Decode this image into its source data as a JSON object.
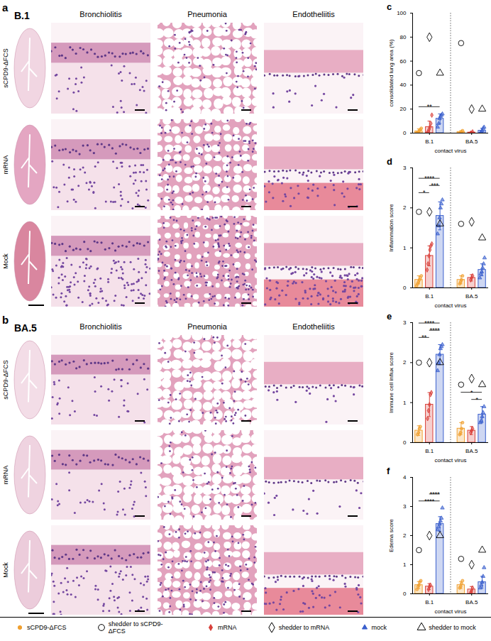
{
  "histology": {
    "panels": [
      {
        "letter": "a",
        "virus": "B.1",
        "columns": [
          "Bronchiolitis",
          "Pneumonia",
          "Endotheliitis"
        ],
        "rows": [
          "sCPD9-ΔFCS",
          "mRNA",
          "Mock"
        ]
      },
      {
        "letter": "b",
        "virus": "BA.5",
        "columns": [
          "Bronchiolitis",
          "Pneumonia",
          "Endotheliitis"
        ],
        "rows": [
          "sCPD9-ΔFCS",
          "mRNA",
          "Mock"
        ]
      }
    ]
  },
  "chart_data": [
    {
      "type": "bar",
      "panel": "c",
      "ylabel": "consolidated lung area (%)",
      "xlabel": "contact virus",
      "categories": [
        "B.1",
        "BA.5"
      ],
      "ylim": [
        0,
        100
      ],
      "yticks": [
        0,
        20,
        40,
        60,
        80,
        100
      ],
      "series": [
        {
          "name": "sCPD9-ΔFCS",
          "shedder_name": "shedder to sCPD9-ΔFCS",
          "color": "#f0a030",
          "marker": "circle",
          "values": [
            1.5,
            1
          ],
          "errors": [
            2,
            1
          ],
          "points": [
            [
              0,
              0,
              1,
              2,
              3,
              4
            ],
            [
              0,
              0,
              1,
              2
            ]
          ],
          "shedder": [
            50,
            75
          ]
        },
        {
          "name": "mRNA",
          "shedder_name": "shedder to mRNA",
          "color": "#d9403a",
          "marker": "diamond",
          "values": [
            5,
            0.5
          ],
          "errors": [
            5,
            0.5
          ],
          "points": [
            [
              0,
              1,
              3,
              5,
              8,
              15
            ],
            [
              0,
              0,
              1
            ]
          ],
          "shedder": [
            80,
            20
          ]
        },
        {
          "name": "mock",
          "shedder_name": "shedder to mock",
          "color": "#3a5fcd",
          "marker": "triangle",
          "values": [
            12,
            2
          ],
          "errors": [
            4,
            2
          ],
          "points": [
            [
              5,
              8,
              12,
              14,
              15,
              16
            ],
            [
              0,
              1,
              2,
              4,
              5
            ]
          ],
          "shedder": [
            50,
            20
          ]
        }
      ],
      "significance": [
        {
          "category": "B.1",
          "from": "sCPD9-ΔFCS",
          "to": "mock",
          "label": "**"
        }
      ]
    },
    {
      "type": "bar",
      "panel": "d",
      "ylabel": "Inflammation score",
      "xlabel": "contact virus",
      "categories": [
        "B.1",
        "BA.5"
      ],
      "ylim": [
        0,
        3
      ],
      "yticks": [
        0,
        1,
        2,
        3
      ],
      "series": [
        {
          "name": "sCPD9-ΔFCS",
          "shedder_name": "shedder to sCPD9-ΔFCS",
          "color": "#f0a030",
          "marker": "circle",
          "values": [
            0.2,
            0.2
          ],
          "errors": [
            0.1,
            0.1
          ],
          "points": [
            [
              0.05,
              0.1,
              0.15,
              0.2,
              0.25,
              0.3
            ],
            [
              0.1,
              0.15,
              0.2,
              0.3
            ]
          ],
          "shedder": [
            1.9,
            1.6
          ]
        },
        {
          "name": "mRNA",
          "shedder_name": "shedder to mRNA",
          "color": "#d9403a",
          "marker": "diamond",
          "values": [
            0.8,
            0.25
          ],
          "errors": [
            0.25,
            0.08
          ],
          "points": [
            [
              0.45,
              0.6,
              0.8,
              0.95,
              1.05,
              1.1
            ],
            [
              0.2,
              0.25,
              0.3
            ]
          ],
          "shedder": [
            1.9,
            1.65
          ]
        },
        {
          "name": "mock",
          "shedder_name": "shedder to mock",
          "color": "#3a5fcd",
          "marker": "triangle",
          "values": [
            1.8,
            0.45
          ],
          "errors": [
            0.35,
            0.15
          ],
          "points": [
            [
              1.35,
              1.55,
              1.75,
              2.0,
              2.1,
              2.2
            ],
            [
              0.25,
              0.35,
              0.4,
              0.5,
              0.6,
              0.75
            ]
          ],
          "shedder": [
            1.6,
            1.25
          ]
        }
      ],
      "significance": [
        {
          "category": "B.1",
          "from": "sCPD9-ΔFCS",
          "to": "mRNA",
          "label": "*"
        },
        {
          "category": "B.1",
          "from": "mRNA",
          "to": "mock",
          "label": "***"
        },
        {
          "category": "B.1",
          "from": "sCPD9-ΔFCS",
          "to": "mock",
          "label": "****"
        }
      ]
    },
    {
      "type": "bar",
      "panel": "e",
      "ylabel": "Immune cell influx score",
      "xlabel": "contact virus",
      "categories": [
        "B.1",
        "BA.5"
      ],
      "ylim": [
        0,
        3
      ],
      "yticks": [
        0,
        1,
        2,
        3
      ],
      "series": [
        {
          "name": "sCPD9-ΔFCS",
          "shedder_name": "shedder to sCPD9-ΔFCS",
          "color": "#f0a030",
          "marker": "circle",
          "values": [
            0.3,
            0.35
          ],
          "errors": [
            0.12,
            0.15
          ],
          "points": [
            [
              0.2,
              0.25,
              0.35,
              0.4
            ],
            [
              0.2,
              0.25,
              0.35,
              0.5
            ]
          ],
          "shedder": [
            2.0,
            1.45
          ]
        },
        {
          "name": "mRNA",
          "shedder_name": "shedder to mRNA",
          "color": "#d9403a",
          "marker": "diamond",
          "values": [
            0.95,
            0.3
          ],
          "errors": [
            0.3,
            0.1
          ],
          "points": [
            [
              0.6,
              0.8,
              0.95,
              1.2,
              1.25
            ],
            [
              0.25,
              0.3,
              0.35
            ]
          ],
          "shedder": [
            2.0,
            1.6
          ]
        },
        {
          "name": "mock",
          "shedder_name": "shedder to mock",
          "color": "#3a5fcd",
          "marker": "triangle",
          "values": [
            2.2,
            0.7
          ],
          "errors": [
            0.25,
            0.2
          ],
          "points": [
            [
              1.8,
              2.0,
              2.2,
              2.35,
              2.4,
              2.45
            ],
            [
              0.5,
              0.55,
              0.65,
              0.75,
              0.9
            ]
          ],
          "shedder": [
            2.0,
            1.45
          ]
        }
      ],
      "significance": [
        {
          "category": "B.1",
          "from": "sCPD9-ΔFCS",
          "to": "mRNA",
          "label": "**"
        },
        {
          "category": "B.1",
          "from": "mRNA",
          "to": "mock",
          "label": "****"
        },
        {
          "category": "B.1",
          "from": "sCPD9-ΔFCS",
          "to": "mock",
          "label": "****"
        },
        {
          "category": "BA.5",
          "from": "mRNA",
          "to": "mock",
          "label": "*"
        },
        {
          "category": "BA.5",
          "from": "sCPD9-ΔFCS",
          "to": "mock",
          "label": "*"
        }
      ]
    },
    {
      "type": "bar",
      "panel": "f",
      "ylabel": "Edema score",
      "xlabel": "contact virus",
      "categories": [
        "B.1",
        "BA.5"
      ],
      "ylim": [
        0,
        4
      ],
      "yticks": [
        0,
        1,
        2,
        3,
        4
      ],
      "series": [
        {
          "name": "sCPD9-ΔFCS",
          "shedder_name": "shedder to sCPD9-ΔFCS",
          "color": "#f0a030",
          "marker": "circle",
          "values": [
            0.3,
            0.3
          ],
          "errors": [
            0.12,
            0.12
          ],
          "points": [
            [
              0.15,
              0.25,
              0.3,
              0.4,
              0.45
            ],
            [
              0.2,
              0.25,
              0.35,
              0.45
            ]
          ],
          "shedder": [
            1.5,
            1.2
          ]
        },
        {
          "name": "mRNA",
          "shedder_name": "shedder to mRNA",
          "color": "#d9403a",
          "marker": "diamond",
          "values": [
            0.25,
            0.15
          ],
          "errors": [
            0.1,
            0.1
          ],
          "points": [
            [
              0.15,
              0.25,
              0.3
            ],
            [
              0.05,
              0.1,
              0.2
            ]
          ],
          "shedder": [
            2.0,
            1.0
          ]
        },
        {
          "name": "mock",
          "shedder_name": "shedder to mock",
          "color": "#3a5fcd",
          "marker": "triangle",
          "values": [
            2.4,
            0.4
          ],
          "errors": [
            0.25,
            0.2
          ],
          "points": [
            [
              2.2,
              2.3,
              2.4,
              2.5,
              2.6,
              2.95
            ],
            [
              0.2,
              0.3,
              0.4,
              0.6,
              0.9
            ]
          ],
          "shedder": [
            2.0,
            1.5
          ]
        }
      ],
      "significance": [
        {
          "category": "B.1",
          "from": "sCPD9-ΔFCS",
          "to": "mock",
          "label": "****"
        },
        {
          "category": "B.1",
          "from": "mRNA",
          "to": "mock",
          "label": "****"
        }
      ]
    }
  ]
}
